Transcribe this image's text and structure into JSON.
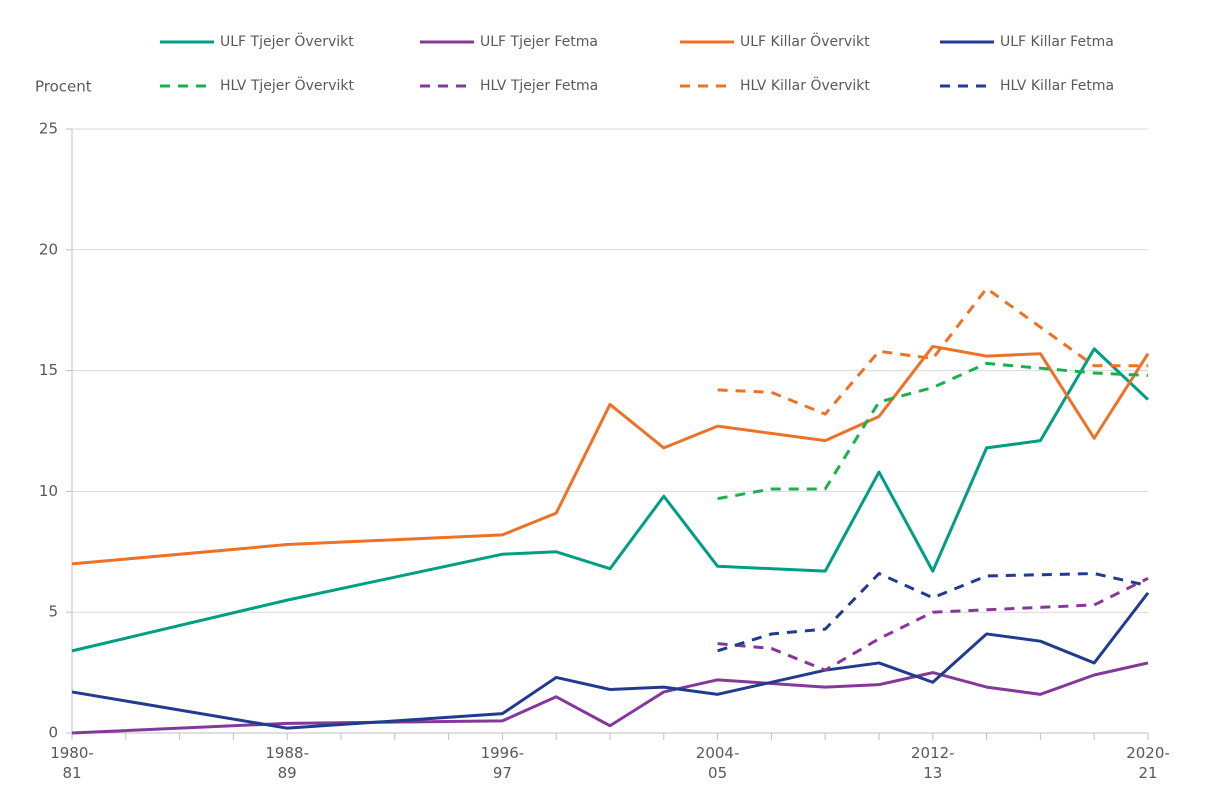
{
  "chart_data": {
    "type": "line",
    "y_axis_label": "Procent",
    "xlim": [
      1980,
      2020
    ],
    "xticks": [
      {
        "value": 1980,
        "label": "1980-\n81"
      },
      {
        "value": 1988,
        "label": "1988-\n89"
      },
      {
        "value": 1996,
        "label": "1996-\n97"
      },
      {
        "value": 2004,
        "label": "2004-\n05"
      },
      {
        "value": 2012,
        "label": "2012-\n13"
      },
      {
        "value": 2020,
        "label": "2020-\n21"
      }
    ],
    "xminorticks": [
      1982,
      1984,
      1986,
      1990,
      1992,
      1994,
      1998,
      2000,
      2002,
      2006,
      2008,
      2010,
      2014,
      2016,
      2018
    ],
    "ylim": [
      0,
      25
    ],
    "yticks": [
      0,
      5,
      10,
      15,
      20,
      25
    ],
    "grid": true,
    "series": [
      {
        "name": "ULF Tjejer Övervikt",
        "color": "#009e82",
        "dash": false,
        "x": [
          1980,
          1988,
          1996,
          1998,
          2000,
          2002,
          2004,
          2008,
          2010,
          2012,
          2014,
          2016,
          2018,
          2020
        ],
        "values": [
          3.4,
          5.5,
          7.4,
          7.5,
          6.8,
          9.8,
          6.9,
          6.7,
          10.8,
          6.7,
          11.8,
          12.1,
          15.9,
          13.8
        ]
      },
      {
        "name": "ULF Tjejer Fetma",
        "color": "#84399a",
        "dash": false,
        "x": [
          1980,
          1988,
          1996,
          1998,
          2000,
          2002,
          2004,
          2008,
          2010,
          2012,
          2014,
          2016,
          2018,
          2020
        ],
        "values": [
          0.0,
          0.4,
          0.5,
          1.5,
          0.3,
          1.7,
          2.2,
          1.9,
          2.0,
          2.5,
          1.9,
          1.6,
          2.4,
          2.9
        ]
      },
      {
        "name": "ULF Killar Övervikt",
        "color": "#ed7127",
        "dash": false,
        "x": [
          1980,
          1988,
          1996,
          1998,
          2000,
          2002,
          2004,
          2008,
          2010,
          2012,
          2014,
          2016,
          2018,
          2020
        ],
        "values": [
          7.0,
          7.8,
          8.2,
          9.1,
          13.6,
          11.8,
          12.7,
          12.1,
          13.1,
          16.0,
          15.6,
          15.7,
          12.2,
          15.7
        ]
      },
      {
        "name": "ULF Killar Fetma",
        "color": "#213b8f",
        "dash": false,
        "x": [
          1980,
          1988,
          1996,
          1998,
          2000,
          2002,
          2004,
          2008,
          2010,
          2012,
          2014,
          2016,
          2018,
          2020
        ],
        "values": [
          1.7,
          0.2,
          0.8,
          2.3,
          1.8,
          1.9,
          1.6,
          2.6,
          2.9,
          2.1,
          4.1,
          3.8,
          2.9,
          5.8
        ]
      },
      {
        "name": "HLV Tjejer Övervikt",
        "color": "#1ab04c",
        "dash": true,
        "x": [
          2004,
          2006,
          2008,
          2010,
          2012,
          2014,
          2016,
          2018,
          2020
        ],
        "values": [
          9.7,
          10.1,
          10.1,
          13.7,
          14.3,
          15.3,
          15.1,
          14.9,
          14.8
        ]
      },
      {
        "name": "HLV Tjejer Fetma",
        "color": "#84399a",
        "dash": true,
        "x": [
          2004,
          2006,
          2008,
          2010,
          2012,
          2014,
          2016,
          2018,
          2020
        ],
        "values": [
          3.7,
          3.5,
          2.6,
          3.9,
          5.0,
          5.1,
          5.2,
          5.3,
          6.4
        ]
      },
      {
        "name": "HLV Killar Övervikt",
        "color": "#ed7127",
        "dash": true,
        "x": [
          2004,
          2006,
          2008,
          2010,
          2012,
          2014,
          2016,
          2018,
          2020
        ],
        "values": [
          14.2,
          14.1,
          13.2,
          15.8,
          15.5,
          18.4,
          16.8,
          15.2,
          15.2
        ]
      },
      {
        "name": "HLV Killar Fetma",
        "color": "#213b8f",
        "dash": true,
        "x": [
          2004,
          2006,
          2008,
          2010,
          2012,
          2014,
          2016,
          2018,
          2020
        ],
        "values": [
          3.4,
          4.1,
          4.3,
          6.6,
          5.6,
          6.5,
          6.55,
          6.6,
          6.1
        ]
      }
    ]
  }
}
